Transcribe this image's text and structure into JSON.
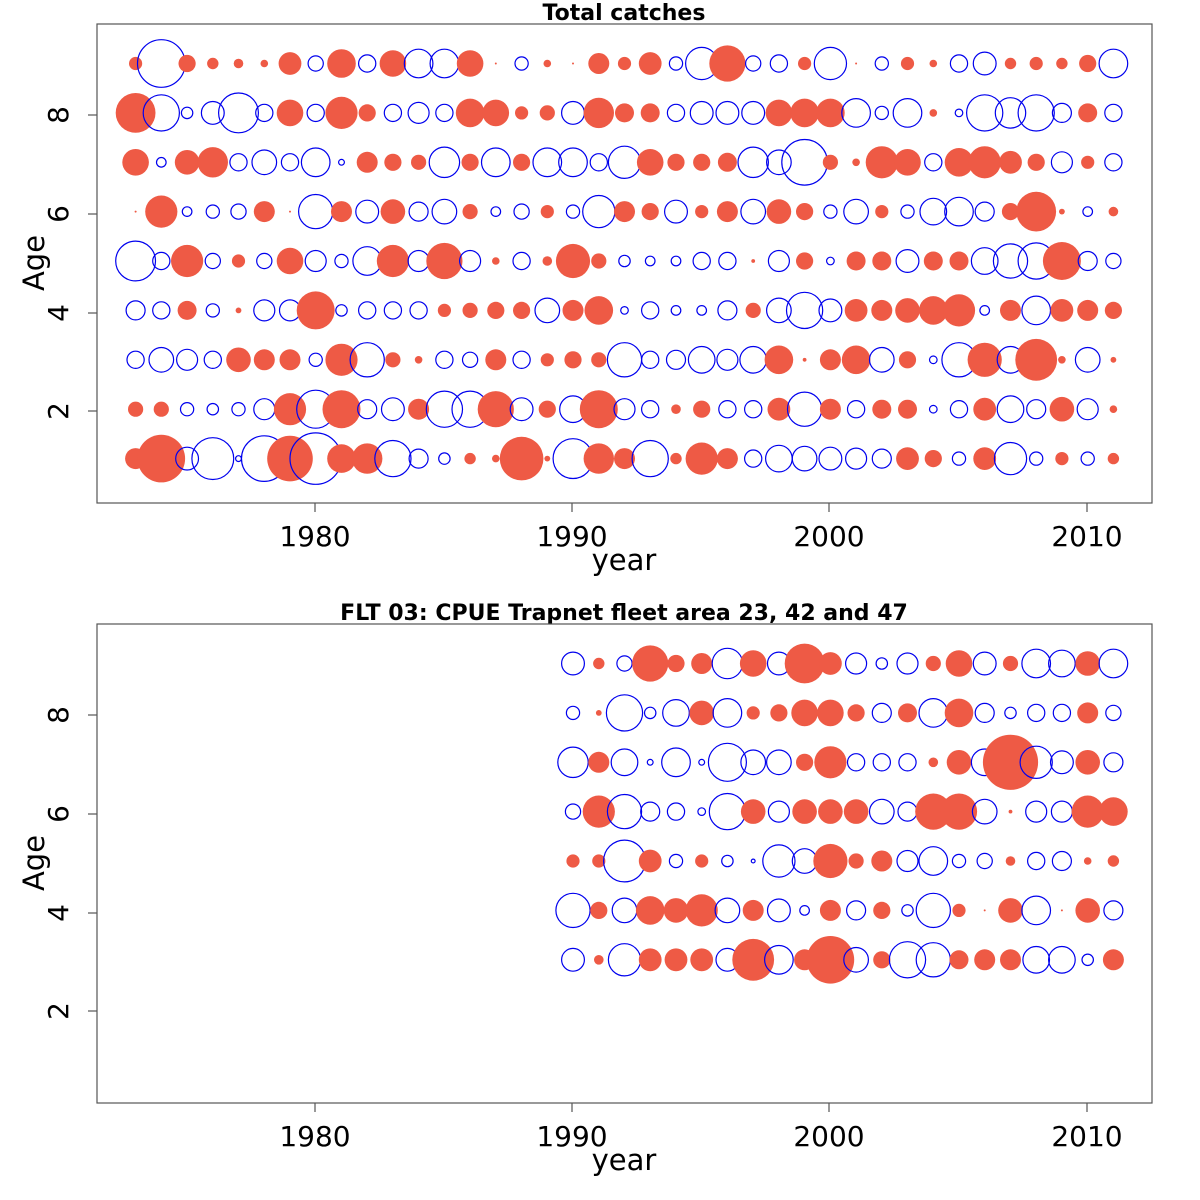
{
  "colors": {
    "positive": "#EE5A45",
    "negative": "#0000EE",
    "axis": "#555555"
  },
  "chart_data": [
    {
      "type": "scatter",
      "subtype": "bubble",
      "title": "Total catches",
      "xlabel": "year",
      "ylabel": "Age",
      "xlim": [
        1971.5,
        2012.5
      ],
      "ylim": [
        0.1,
        9.8
      ],
      "x_ticks": [
        "1980",
        "1990",
        "2000",
        "2010"
      ],
      "y_ticks": [
        "2",
        "4",
        "6",
        "8"
      ],
      "years": [
        1973,
        1974,
        1975,
        1976,
        1977,
        1978,
        1979,
        1980,
        1981,
        1982,
        1983,
        1984,
        1985,
        1986,
        1987,
        1988,
        1989,
        1990,
        1991,
        1992,
        1993,
        1994,
        1995,
        1996,
        1997,
        1998,
        1999,
        2000,
        2001,
        2002,
        2003,
        2004,
        2005,
        2006,
        2007,
        2008,
        2009,
        2010,
        2011
      ],
      "ages": [
        1,
        2,
        3,
        4,
        5,
        6,
        7,
        8,
        9
      ],
      "residuals": [
        [
          0.55,
          1.25,
          -0.6,
          -1.1,
          -0.15,
          -1.2,
          1.2,
          -1.35,
          0.75,
          0.8,
          -0.95,
          -0.5,
          -0.3,
          0.3,
          0.2,
          1.15,
          0.15,
          -1.05,
          0.8,
          0.55,
          -0.95,
          0.3,
          0.85,
          0.55,
          -0.45,
          -0.7,
          -0.65,
          -0.6,
          -0.55,
          -0.5,
          0.6,
          0.45,
          -0.35,
          0.6,
          -0.85,
          -0.35,
          0.35,
          -0.35,
          0.3
        ],
        [
          0.4,
          0.4,
          -0.35,
          -0.3,
          -0.35,
          -0.55,
          0.85,
          -1.0,
          1.0,
          -0.5,
          -0.6,
          0.55,
          -0.95,
          -0.95,
          0.95,
          -0.6,
          0.45,
          -0.7,
          1.0,
          -0.55,
          -0.45,
          0.25,
          0.45,
          -0.45,
          -0.45,
          0.6,
          -0.9,
          0.55,
          -0.45,
          0.5,
          0.5,
          -0.2,
          -0.45,
          0.6,
          -0.7,
          -0.5,
          0.65,
          -0.55,
          0.2
        ],
        [
          -0.45,
          -0.65,
          -0.55,
          -0.45,
          0.65,
          0.55,
          0.55,
          -0.35,
          0.85,
          -0.9,
          0.4,
          0.2,
          -0.45,
          -0.4,
          0.55,
          -0.45,
          0.35,
          0.45,
          0.4,
          -0.9,
          -0.45,
          -0.5,
          -0.7,
          -0.55,
          -0.7,
          0.75,
          0.1,
          0.55,
          0.75,
          -0.65,
          0.45,
          -0.2,
          -0.9,
          0.9,
          -0.7,
          1.1,
          0.2,
          -0.65,
          0.15
        ],
        [
          -0.5,
          -0.45,
          0.5,
          -0.35,
          0.15,
          -0.55,
          -0.55,
          1.0,
          -0.3,
          -0.45,
          -0.45,
          -0.45,
          0.35,
          0.4,
          0.45,
          0.45,
          -0.65,
          0.55,
          0.75,
          -0.2,
          -0.45,
          -0.25,
          -0.25,
          -0.5,
          0.4,
          -0.65,
          -0.95,
          -0.6,
          0.6,
          0.55,
          0.65,
          0.75,
          0.85,
          -0.25,
          0.55,
          -0.75,
          0.6,
          0.55,
          0.45
        ],
        [
          -1.05,
          -0.45,
          0.85,
          -0.4,
          0.35,
          -0.4,
          0.7,
          -0.55,
          -0.35,
          -0.75,
          0.85,
          -0.55,
          0.95,
          -0.55,
          0.2,
          -0.45,
          0.25,
          0.9,
          0.4,
          -0.3,
          -0.25,
          -0.25,
          -0.45,
          -0.45,
          0.1,
          -0.55,
          0.45,
          -0.2,
          0.5,
          0.5,
          -0.6,
          0.5,
          0.5,
          -0.7,
          -0.9,
          -0.95,
          1.0,
          -0.5,
          -0.4
        ],
        [
          0.05,
          0.85,
          -0.25,
          -0.35,
          -0.4,
          0.55,
          0.05,
          -0.9,
          0.55,
          -0.6,
          0.65,
          -0.5,
          -0.65,
          0.4,
          -0.25,
          -0.4,
          0.35,
          -0.35,
          -0.85,
          0.55,
          0.45,
          -0.6,
          0.35,
          0.55,
          -0.65,
          0.65,
          0.45,
          -0.35,
          -0.65,
          0.35,
          -0.35,
          -0.7,
          -0.75,
          -0.5,
          0.45,
          1.05,
          0.15,
          -0.25,
          0.25
        ],
        [
          0.7,
          -0.25,
          0.65,
          0.8,
          -0.45,
          -0.65,
          -0.45,
          -0.75,
          -0.15,
          0.55,
          0.45,
          0.4,
          -0.8,
          0.45,
          -0.75,
          0.45,
          -0.75,
          -0.75,
          -0.45,
          -0.85,
          0.7,
          0.45,
          0.45,
          0.5,
          -0.8,
          -0.65,
          -1.2,
          0.4,
          0.2,
          0.85,
          0.7,
          -0.45,
          0.75,
          0.85,
          0.6,
          0.45,
          -0.55,
          0.35,
          -0.45
        ],
        [
          1.05,
          -0.95,
          -0.3,
          -0.6,
          -1.05,
          -0.45,
          0.7,
          -0.45,
          0.85,
          0.45,
          -0.45,
          -0.55,
          -0.45,
          0.75,
          0.7,
          0.35,
          0.4,
          -0.6,
          0.8,
          0.5,
          0.5,
          -0.45,
          -0.6,
          -0.6,
          -0.6,
          0.7,
          0.75,
          0.75,
          -0.75,
          -0.35,
          -0.75,
          0.2,
          -0.2,
          -0.95,
          -0.8,
          -0.95,
          -0.5,
          0.5,
          -0.45
        ],
        [
          0.35,
          -1.25,
          0.45,
          0.3,
          0.25,
          0.2,
          0.6,
          -0.4,
          0.75,
          -0.45,
          0.7,
          -0.75,
          -0.75,
          0.7,
          0.05,
          -0.35,
          0.2,
          0.05,
          0.55,
          0.35,
          0.6,
          -0.35,
          -0.85,
          0.95,
          -0.4,
          -0.45,
          0.35,
          -0.85,
          0.05,
          -0.35,
          0.35,
          0.2,
          -0.45,
          -0.6,
          0.3,
          0.35,
          0.3,
          0.45,
          -0.75
        ]
      ]
    },
    {
      "type": "scatter",
      "subtype": "bubble",
      "title": "FLT 03: CPUE Trapnet fleet area 23, 42 and 47",
      "xlabel": "year",
      "ylabel": "Age",
      "xlim": [
        1971.5,
        2012.5
      ],
      "ylim": [
        0.1,
        9.8
      ],
      "x_ticks": [
        "1980",
        "1990",
        "2000",
        "2010"
      ],
      "y_ticks": [
        "2",
        "4",
        "6",
        "8"
      ],
      "years": [
        1990,
        1991,
        1992,
        1993,
        1994,
        1995,
        1996,
        1997,
        1998,
        1999,
        2000,
        2001,
        2002,
        2003,
        2004,
        2005,
        2006,
        2007,
        2008,
        2009,
        2010,
        2011
      ],
      "ages": [
        3,
        4,
        5,
        6,
        7,
        8,
        9
      ],
      "residuals": [
        [
          -0.6,
          0.25,
          -0.85,
          0.6,
          0.6,
          0.6,
          -0.6,
          1.1,
          -0.75,
          0.55,
          1.25,
          -0.65,
          0.45,
          -0.95,
          -0.9,
          0.5,
          0.55,
          0.55,
          -0.7,
          -0.7,
          -0.3,
          0.55
        ],
        [
          -0.9,
          0.45,
          -0.65,
          0.75,
          0.65,
          0.85,
          -0.65,
          0.55,
          -0.6,
          -0.25,
          0.55,
          -0.5,
          0.45,
          -0.3,
          -0.9,
          0.35,
          0.05,
          0.65,
          -0.75,
          0.05,
          0.65,
          -0.5
        ],
        [
          0.35,
          0.35,
          -1.1,
          0.6,
          -0.35,
          0.35,
          -0.3,
          -0.1,
          -0.85,
          -0.65,
          0.9,
          0.4,
          0.55,
          -0.55,
          -0.75,
          -0.35,
          -0.4,
          0.25,
          -0.45,
          -0.5,
          0.2,
          0.3
        ],
        [
          -0.4,
          0.85,
          -0.9,
          -0.5,
          -0.45,
          -0.2,
          -0.95,
          0.65,
          -0.55,
          0.65,
          0.65,
          0.65,
          -0.65,
          -0.5,
          0.95,
          0.95,
          -0.65,
          0.1,
          -0.55,
          -0.55,
          0.85,
          0.75
        ],
        [
          -0.8,
          0.55,
          -0.7,
          -0.15,
          -0.75,
          -0.15,
          -1.0,
          -0.65,
          -0.65,
          0.45,
          0.85,
          -0.45,
          -0.45,
          -0.45,
          0.25,
          0.65,
          -0.7,
          1.45,
          -0.85,
          -0.6,
          0.65,
          -0.5
        ],
        [
          -0.35,
          0.15,
          -0.95,
          -0.3,
          -0.7,
          0.65,
          -0.75,
          0.35,
          0.45,
          0.7,
          0.7,
          0.45,
          -0.5,
          0.5,
          -0.75,
          0.75,
          -0.5,
          -0.3,
          -0.45,
          -0.45,
          0.55,
          -0.4
        ],
        [
          -0.6,
          0.3,
          -0.4,
          0.95,
          0.45,
          0.55,
          -0.8,
          0.7,
          -0.6,
          1.05,
          0.6,
          -0.55,
          -0.3,
          -0.55,
          0.4,
          0.7,
          -0.6,
          0.4,
          -0.75,
          -0.7,
          0.65,
          -0.75
        ]
      ]
    }
  ]
}
